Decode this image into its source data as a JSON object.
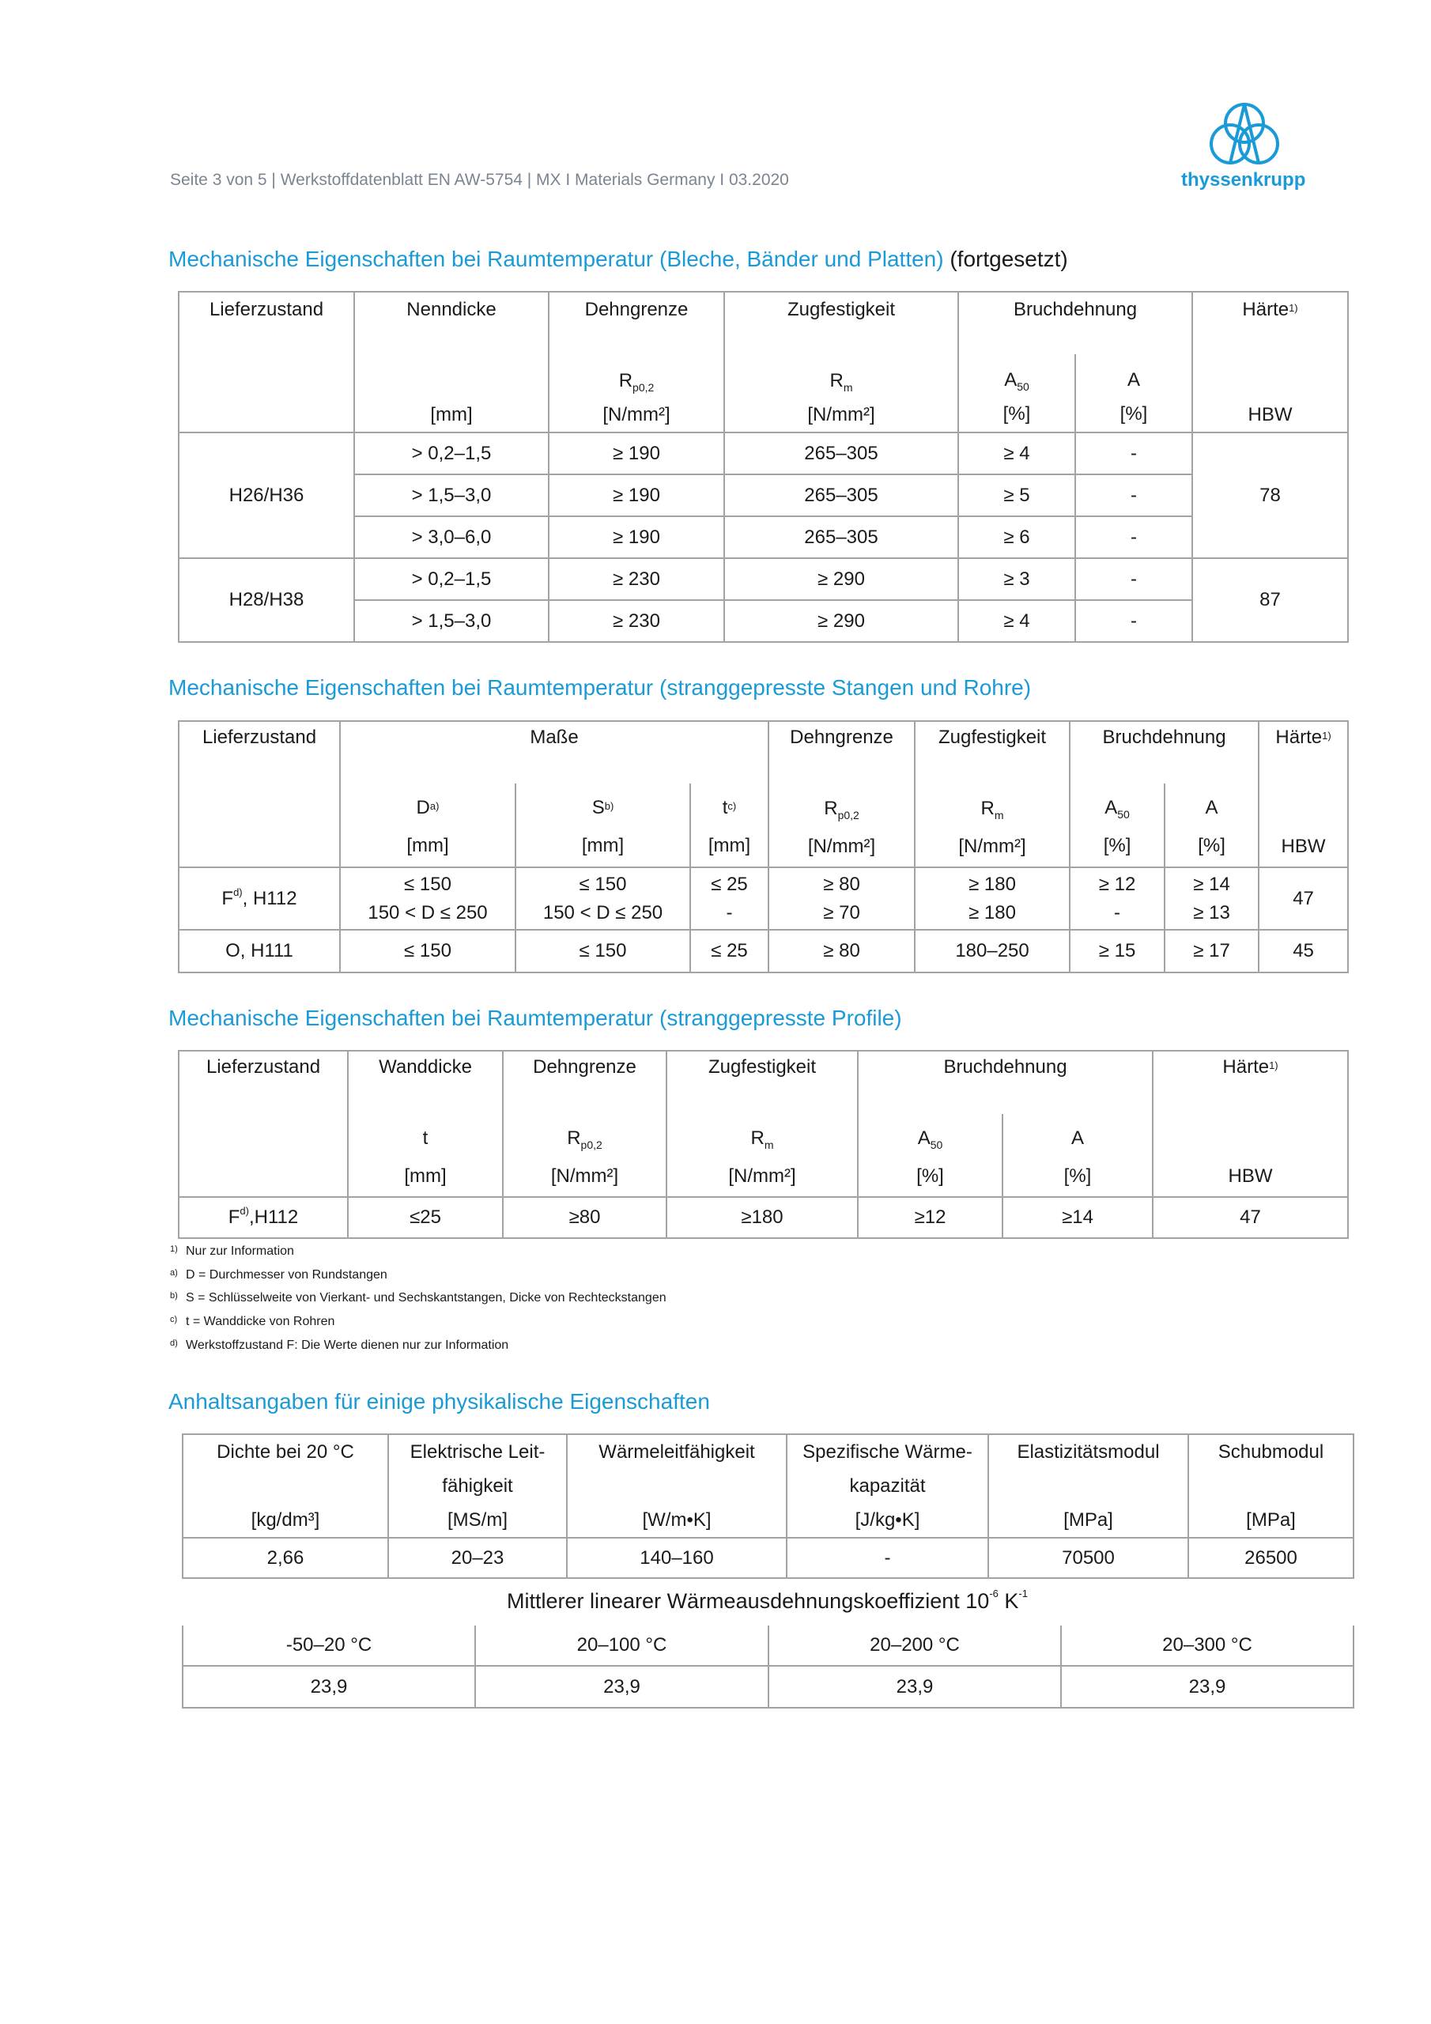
{
  "header": {
    "text": "Seite 3 von 5 | Werkstoffdatenblatt EN AW-5754 | MX I Materials Germany I 03.2020",
    "logo_text": "thyssenkrupp",
    "logo_icon": "thyssenkrupp-rings-logo"
  },
  "colors": {
    "accent": "#1a9ad6",
    "text": "#1a1a1a",
    "header_gray": "#7b8591",
    "border": "#a3a3a3"
  },
  "t1": {
    "title": "Mechanische Eigenschaften bei Raumtemperatur (Bleche, Bänder und Platten)",
    "title_suffix": "(fortgesetzt)",
    "h": {
      "lief": "Lieferzustand",
      "nenn": "Nenndicke",
      "nenn_unit": "[mm]",
      "dehn": "Dehngrenze",
      "dehn_sym": "R",
      "dehn_sub": "p0,2",
      "dehn_unit": "[N/mm²]",
      "zug": "Zugfestigkeit",
      "zug_sym": "R",
      "zug_sub": "m",
      "zug_unit": "[N/mm²]",
      "bruch": "Bruchdehnung",
      "a50_sym": "A",
      "a50_sub": "50",
      "a50_unit": "[%]",
      "a_sym": "A",
      "a_unit": "[%]",
      "haerte": "Härte",
      "haerte_sup": "1)",
      "haerte_unit": "HBW"
    },
    "groups": [
      {
        "zustand": "H26/H36",
        "hbw": "78",
        "rows": [
          {
            "d": "> 0,2–1,5",
            "rp": "≥ 190",
            "rm": "265–305",
            "a50": "≥ 4",
            "a": "-"
          },
          {
            "d": "> 1,5–3,0",
            "rp": "≥ 190",
            "rm": "265–305",
            "a50": "≥ 5",
            "a": "-"
          },
          {
            "d": "> 3,0–6,0",
            "rp": "≥ 190",
            "rm": "265–305",
            "a50": "≥ 6",
            "a": "-"
          }
        ]
      },
      {
        "zustand": "H28/H38",
        "hbw": "87",
        "rows": [
          {
            "d": "> 0,2–1,5",
            "rp": "≥ 230",
            "rm": "≥ 290",
            "a50": "≥ 3",
            "a": "-"
          },
          {
            "d": "> 1,5–3,0",
            "rp": "≥ 230",
            "rm": "≥ 290",
            "a50": "≥ 4",
            "a": "-"
          }
        ]
      }
    ]
  },
  "t2": {
    "title": "Mechanische Eigenschaften bei Raumtemperatur (stranggepresste Stangen und Rohre)",
    "h": {
      "lief": "Lieferzustand",
      "masse": "Maße",
      "d_sym": "D",
      "d_sup": "a)",
      "d_unit": "[mm]",
      "s_sym": "S",
      "s_sup": "b)",
      "s_unit": "[mm]",
      "t_sym": "t",
      "t_sup": "c)",
      "t_unit": "[mm]",
      "dehn": "Dehngrenze",
      "dehn_sym": "R",
      "dehn_sub": "p0,2",
      "dehn_unit": "[N/mm²]",
      "zug": "Zugfestigkeit",
      "zug_sym": "R",
      "zug_sub": "m",
      "zug_unit": "[N/mm²]",
      "bruch": "Bruchdehnung",
      "a50_sym": "A",
      "a50_sub": "50",
      "a50_unit": "[%]",
      "a_sym": "A",
      "a_unit": "[%]",
      "haerte": "Härte",
      "haerte_sup": "1)",
      "haerte_unit": "HBW"
    },
    "rows": [
      {
        "zustand": "F",
        "zustand_sup": "d)",
        "zustand_rest": ", H112",
        "d": [
          "≤ 150",
          "150 < D ≤ 250"
        ],
        "s": [
          "≤ 150",
          "150 < D ≤ 250"
        ],
        "t": [
          "≤ 25",
          "-"
        ],
        "rp": [
          "≥ 80",
          "≥ 70"
        ],
        "rm": [
          "≥ 180",
          "≥ 180"
        ],
        "a50": [
          "≥ 12",
          "-"
        ],
        "a": [
          "≥ 14",
          "≥ 13"
        ],
        "hbw": "47"
      },
      {
        "zustand": "O, H111",
        "d": "≤ 150",
        "s": "≤ 150",
        "t": "≤ 25",
        "rp": "≥ 80",
        "rm": "180–250",
        "a50": "≥ 15",
        "a": "≥ 17",
        "hbw": "45"
      }
    ]
  },
  "t3": {
    "title": "Mechanische Eigenschaften bei Raumtemperatur (stranggepresste Profile)",
    "h": {
      "lief": "Lieferzustand",
      "wand": "Wanddicke",
      "wand_sym": "t",
      "wand_unit": "[mm]",
      "dehn": "Dehngrenze",
      "dehn_sym": "R",
      "dehn_sub": "p0,2",
      "dehn_unit": "[N/mm²]",
      "zug": "Zugfestigkeit",
      "zug_sym": "R",
      "zug_sub": "m",
      "zug_unit": "[N/mm²]",
      "bruch": "Bruchdehnung",
      "a50_sym": "A",
      "a50_sub": "50",
      "a50_unit": "[%]",
      "a_sym": "A",
      "a_unit": "[%]",
      "haerte": "Härte",
      "haerte_sup": "1)",
      "haerte_unit": "HBW"
    },
    "row": {
      "zustand": "F",
      "zustand_sup": "d)",
      "zustand_rest": ",H112",
      "t": "≤25",
      "rp": "≥80",
      "rm": "≥180",
      "a50": "≥12",
      "a": "≥14",
      "hbw": "47"
    }
  },
  "footnotes": [
    {
      "mark": "1)",
      "text": "Nur zur Information"
    },
    {
      "mark": "a)",
      "text": "D = Durchmesser von Rundstangen"
    },
    {
      "mark": "b)",
      "text": "S = Schlüsselweite von Vierkant- und Sechskantstangen, Dicke von Rechteckstangen"
    },
    {
      "mark": "c)",
      "text": "t = Wanddicke von Rohren"
    },
    {
      "mark": "d)",
      "text": "Werkstoffzustand F: Die Werte dienen nur zur Information"
    }
  ],
  "t4": {
    "title": "Anhaltsangaben für einige physikalische Eigenschaften",
    "headers": [
      {
        "l1": "Dichte bei 20 °C",
        "l2": "",
        "unit": "[kg/dm³]"
      },
      {
        "l1": "Elektrische Leit-",
        "l2": "fähigkeit",
        "unit": "[MS/m]"
      },
      {
        "l1": "Wärmeleitfähigkeit",
        "l2": "",
        "unit": "[W/m•K]"
      },
      {
        "l1": "Spezifische Wärme-",
        "l2": "kapazität",
        "unit": "[J/kg•K]"
      },
      {
        "l1": "Elastizitätsmodul",
        "l2": "",
        "unit": "[MPa]"
      },
      {
        "l1": "Schubmodul",
        "l2": "",
        "unit": "[MPa]"
      }
    ],
    "values": [
      "2,66",
      "20–23",
      "140–160",
      "-",
      "70500",
      "26500"
    ]
  },
  "t5": {
    "caption": "Mittlerer linearer Wärmeausdehnungskoeffizient 10",
    "caption_sup1": "-6",
    "caption_mid": " K",
    "caption_sup2": "-1",
    "headers": [
      "-50–20 °C",
      "20–100 °C",
      "20–200 °C",
      "20–300 °C"
    ],
    "values": [
      "23,9",
      "23,9",
      "23,9",
      "23,9"
    ]
  }
}
